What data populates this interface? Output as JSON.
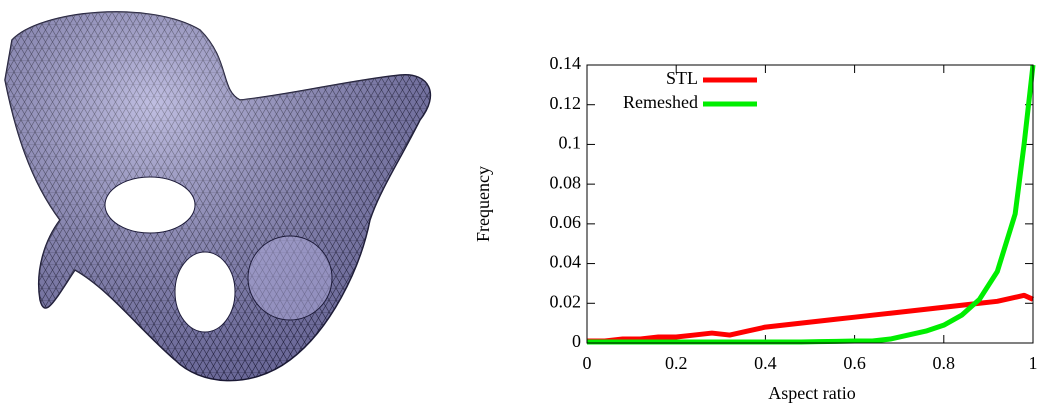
{
  "chart_data": {
    "type": "line",
    "xlabel": "Aspect ratio",
    "ylabel": "Frequency",
    "x": [
      0,
      0.04,
      0.08,
      0.12,
      0.16,
      0.2,
      0.24,
      0.28,
      0.32,
      0.36,
      0.4,
      0.44,
      0.48,
      0.52,
      0.56,
      0.6,
      0.64,
      0.68,
      0.72,
      0.76,
      0.8,
      0.84,
      0.88,
      0.92,
      0.96,
      0.98,
      1
    ],
    "series": [
      {
        "name": "STL",
        "color": "#ff0000",
        "values": [
          0.001,
          0.001,
          0.002,
          0.002,
          0.003,
          0.003,
          0.004,
          0.005,
          0.004,
          0.006,
          0.008,
          0.009,
          0.01,
          0.011,
          0.012,
          0.013,
          0.014,
          0.015,
          0.016,
          0.017,
          0.018,
          0.019,
          0.02,
          0.021,
          0.023,
          0.024,
          0.022
        ]
      },
      {
        "name": "Remeshed",
        "color": "#00ee00",
        "values": [
          0.0005,
          0.0005,
          0.0005,
          0.0005,
          0.0005,
          0.0005,
          0.0005,
          0.0005,
          0.0005,
          0.0005,
          0.0005,
          0.0005,
          0.0005,
          0.0007,
          0.0008,
          0.001,
          0.001,
          0.002,
          0.004,
          0.006,
          0.009,
          0.014,
          0.022,
          0.036,
          0.065,
          0.1,
          0.14
        ]
      }
    ],
    "xlim": [
      0,
      1
    ],
    "ylim": [
      0,
      0.14
    ],
    "xticks": [
      0,
      0.2,
      0.4,
      0.6,
      0.8,
      1
    ],
    "yticks": [
      0,
      0.02,
      0.04,
      0.06,
      0.08,
      0.1,
      0.12,
      0.14
    ],
    "legend": "upper left"
  }
}
